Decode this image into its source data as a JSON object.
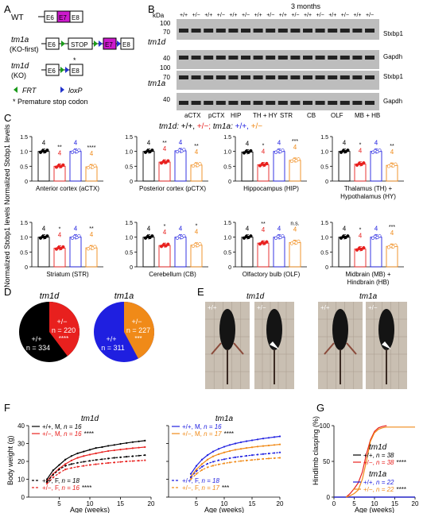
{
  "panels": {
    "A": "A",
    "B": "B",
    "C": "C",
    "D": "D",
    "E": "E",
    "F": "F",
    "G": "G"
  },
  "colors": {
    "wt": "#000000",
    "het_d": "#e8201e",
    "het_a_blue": "#1f1fe0",
    "het_a_orange": "#f08a18",
    "exon7": "#cc1acc",
    "frt": "#1a9a1a",
    "loxp": "#2233cc",
    "blot_bg": "#bdbdbd"
  },
  "panel_a": {
    "rows": [
      {
        "name": "WT",
        "boxes": [
          "E6",
          "E7",
          "E8"
        ]
      },
      {
        "name": "tm1a",
        "sub": "(KO-first)",
        "boxes": [
          "E6",
          "STOP",
          "E7",
          "E8"
        ]
      },
      {
        "name": "tm1d",
        "sub": "(KO)",
        "boxes": [
          "E6",
          "E8"
        ]
      }
    ],
    "legend_frt": "FRT",
    "legend_loxp": "loxP",
    "legend_stop": "* Premature stop codon"
  },
  "panel_b": {
    "title": "3 months",
    "kda": "kDa",
    "genotypes": [
      "+/+",
      "+/−",
      "+/+",
      "+/−",
      "+/+",
      "+/−",
      "+/+",
      "+/−",
      "+/+",
      "+/−",
      "+/+",
      "+/−",
      "+/+",
      "+/−",
      "+/+",
      "+/−"
    ],
    "markers_top": [
      "100",
      "70",
      "40",
      "100",
      "70",
      "40"
    ],
    "row_labels": [
      "tm1d",
      "tm1a"
    ],
    "band_labels": [
      "Stxbp1",
      "Gapdh",
      "Stxbp1",
      "Gapdh"
    ],
    "regions": [
      "aCTX",
      "pCTX",
      "HIP",
      "TH + HY",
      "STR",
      "CB",
      "OLF",
      "MB + HB"
    ]
  },
  "panel_c": {
    "header_d": "tm1d:",
    "header_d_wt": "+/+,",
    "header_d_het": "+/−;",
    "header_a": "tm1a:",
    "header_a_wt": "+/+,",
    "header_a_het": "+/−",
    "ylabel": "Normalized Stxbp1 levels",
    "yticks": [
      "0",
      "0.5",
      "1.0",
      "1.5"
    ],
    "regions": [
      {
        "name": "Anterior cortex (aCTX)",
        "vals": [
          1.0,
          0.5,
          1.0,
          0.48
        ],
        "sig": [
          "**",
          "****"
        ]
      },
      {
        "name": "Posterior cortex (pCTX)",
        "vals": [
          1.0,
          0.64,
          1.02,
          0.54
        ],
        "sig": [
          "**",
          "**"
        ]
      },
      {
        "name": "Hippocampus (HIP)",
        "vals": [
          0.98,
          0.55,
          1.0,
          0.7
        ],
        "sig": [
          "*",
          "***"
        ]
      },
      {
        "name": "Thalamus (TH) + Hypothalamus (HY)",
        "vals": [
          1.0,
          0.57,
          1.0,
          0.53
        ],
        "sig": [
          "*",
          "**"
        ]
      },
      {
        "name": "Striatum (STR)",
        "vals": [
          1.0,
          0.63,
          1.0,
          0.64
        ],
        "sig": [
          "*",
          "**"
        ]
      },
      {
        "name": "Cerebellum (CB)",
        "vals": [
          1.0,
          0.72,
          1.0,
          0.73
        ],
        "sig": [
          "*",
          "*"
        ]
      },
      {
        "name": "Olfactory bulb (OLF)",
        "vals": [
          1.0,
          0.8,
          1.0,
          0.82
        ],
        "sig": [
          "**",
          "n.s."
        ]
      },
      {
        "name": "Midbrain (MB) + Hindbrain (HB)",
        "vals": [
          1.0,
          0.6,
          1.0,
          0.69
        ],
        "sig": [
          "*",
          "***"
        ]
      }
    ],
    "n": "4"
  },
  "panel_d": {
    "pies": [
      {
        "title": "tm1d",
        "wt_label": "+/+",
        "wt_n": "n = 334",
        "het_label": "+/−",
        "het_n": "n = 220",
        "sig": "****",
        "het_frac": 0.397
      },
      {
        "title": "tm1a",
        "wt_label": "+/+",
        "wt_n": "n = 311",
        "het_label": "+/−",
        "het_n": "n = 227",
        "sig": "***",
        "het_frac": 0.422
      }
    ]
  },
  "panel_e": {
    "label_d": "tm1d",
    "label_a": "tm1a",
    "wt": "+/+",
    "het": "+/−"
  },
  "chart_data": [
    {
      "type": "line",
      "title": "tm1d",
      "xlabel": "Age (weeks)",
      "ylabel": "Body weight (g)",
      "xlim": [
        0,
        20
      ],
      "ylim": [
        0,
        40
      ],
      "xticks": [
        "5",
        "10",
        "15",
        "20"
      ],
      "yticks": [
        "0",
        "10",
        "20",
        "30",
        "40"
      ],
      "legend": [
        {
          "text": "+/+, M, ",
          "n": "n = 16",
          "sig": ""
        },
        {
          "text": "+/−, M, ",
          "n": "n = 16",
          "sig": "****"
        },
        {
          "text": "+/+, F, ",
          "n": "n = 18",
          "sig": ""
        },
        {
          "text": "+/−, F, ",
          "n": "n = 16",
          "sig": "****"
        }
      ],
      "x": [
        3,
        4,
        5,
        6,
        7,
        8,
        9,
        10,
        11,
        12,
        13,
        14,
        15,
        16,
        17,
        18,
        19
      ],
      "series": [
        {
          "name": "+/+, M",
          "values": [
            10,
            15,
            18,
            21,
            23,
            24.5,
            25.5,
            26.5,
            27.5,
            28,
            28.7,
            29.2,
            29.8,
            30.3,
            30.8,
            31.2,
            31.6
          ]
        },
        {
          "name": "+/−, M",
          "values": [
            9,
            13,
            16,
            18.5,
            20.5,
            22,
            23,
            23.8,
            24.5,
            25.2,
            25.8,
            26.2,
            26.6,
            27,
            27.4,
            27.7,
            28
          ]
        },
        {
          "name": "+/+, F",
          "values": [
            8.5,
            12.5,
            15.5,
            17.5,
            18.5,
            19.2,
            19.8,
            20.3,
            20.8,
            21.2,
            21.6,
            22,
            22.3,
            22.6,
            22.9,
            23.2,
            23.5
          ]
        },
        {
          "name": "+/−, F",
          "values": [
            7.5,
            11,
            13.5,
            15.5,
            16.3,
            17,
            17.5,
            18,
            18.4,
            18.8,
            19.1,
            19.4,
            19.7,
            20,
            20.2,
            20.4,
            20.6
          ]
        }
      ]
    },
    {
      "type": "line",
      "title": "tm1a",
      "xlabel": "Age (weeks)",
      "xlim": [
        0,
        20
      ],
      "ylim": [
        0,
        40
      ],
      "xticks": [
        "5",
        "10",
        "15",
        "20"
      ],
      "legend": [
        {
          "text": "+/+, M, ",
          "n": "n = 16",
          "sig": ""
        },
        {
          "text": "+/−, M, ",
          "n": "n = 17",
          "sig": "****"
        },
        {
          "text": "+/+, F, ",
          "n": "n = 18",
          "sig": ""
        },
        {
          "text": "+/−, F, ",
          "n": "n = 17",
          "sig": "***"
        }
      ],
      "x": [
        4,
        5,
        6,
        7,
        8,
        9,
        10,
        11,
        12,
        13,
        14,
        15,
        16,
        17,
        18,
        19,
        20
      ],
      "series": [
        {
          "name": "+/+, M",
          "values": [
            13,
            17.5,
            21,
            23.5,
            25.5,
            27,
            28.2,
            29.2,
            30,
            30.7,
            31.3,
            31.8,
            32.3,
            32.8,
            33.2,
            33.6,
            34
          ]
        },
        {
          "name": "+/−, M",
          "values": [
            11.5,
            15.5,
            18.5,
            21,
            22.8,
            24,
            25,
            25.8,
            26.5,
            27,
            27.5,
            27.9,
            28.3,
            28.6,
            28.9,
            29.2,
            29.5
          ]
        },
        {
          "name": "+/+, F",
          "values": [
            11,
            14.5,
            17,
            18.7,
            19.8,
            20.6,
            21.2,
            21.8,
            22.3,
            22.7,
            23.1,
            23.5,
            23.8,
            24.1,
            24.4,
            24.7,
            25
          ]
        },
        {
          "name": "+/−, F",
          "values": [
            10,
            13,
            15.2,
            16.7,
            17.6,
            18.3,
            18.9,
            19.4,
            19.8,
            20.2,
            20.5,
            20.8,
            21.1,
            21.4,
            21.6,
            21.8,
            22
          ]
        }
      ]
    },
    {
      "type": "line",
      "xlabel": "Age (weeks)",
      "ylabel": "Hindlimb clasping (%)",
      "xlim": [
        0,
        20
      ],
      "ylim": [
        0,
        100
      ],
      "xticks": [
        "0",
        "5",
        "10",
        "15",
        "20"
      ],
      "yticks": [
        "0",
        "50",
        "100"
      ],
      "legend_title_d": "tm1d",
      "legend_title_a": "tm1a",
      "legend": [
        {
          "text": "+/+, ",
          "n": "n = 38",
          "sig": ""
        },
        {
          "text": "+/−, ",
          "n": "n = 38",
          "sig": "****"
        },
        {
          "text": "+/+, ",
          "n": "n = 22",
          "sig": ""
        },
        {
          "text": "+/−, ",
          "n": "n = 22",
          "sig": "****"
        }
      ],
      "series": [
        {
          "name": "tm1d +/+",
          "x": [
            0,
            20
          ],
          "values": [
            0,
            0
          ]
        },
        {
          "name": "tm1d +/−",
          "x": [
            3,
            4,
            5,
            6,
            7,
            8,
            9,
            10,
            11,
            12,
            13
          ],
          "values": [
            0,
            5,
            12,
            20,
            35,
            60,
            80,
            92,
            97,
            99,
            100
          ]
        },
        {
          "name": "tm1a +/+",
          "x": [
            0,
            20
          ],
          "values": [
            0,
            0
          ]
        },
        {
          "name": "tm1a +/−",
          "x": [
            3,
            4,
            5,
            6,
            7,
            8,
            9,
            10,
            11,
            12,
            13,
            14,
            15,
            20
          ],
          "values": [
            0,
            2,
            5,
            10,
            25,
            50,
            78,
            90,
            95,
            97,
            98,
            98,
            98,
            98
          ]
        }
      ]
    }
  ]
}
